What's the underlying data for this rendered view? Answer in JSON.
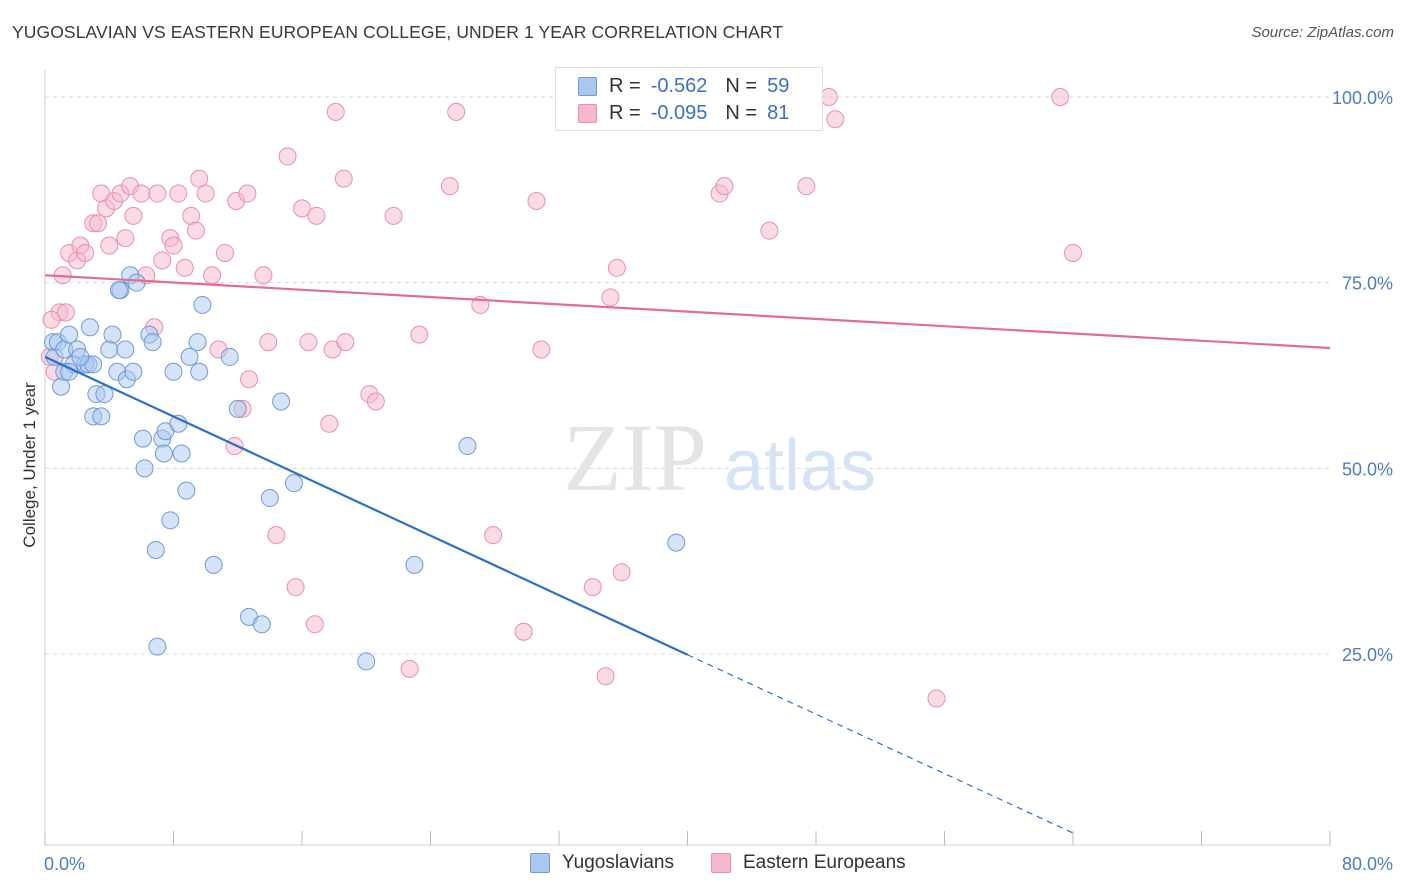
{
  "header": {
    "title": "YUGOSLAVIAN VS EASTERN EUROPEAN COLLEGE, UNDER 1 YEAR CORRELATION CHART",
    "source": "Source: ZipAtlas.com"
  },
  "watermark": {
    "zip": "ZIP",
    "atlas": "atlas"
  },
  "stats_legend": {
    "rows": [
      {
        "r_label": "R =",
        "r_value": "-0.562",
        "n_label": "N =",
        "n_value": "59"
      },
      {
        "r_label": "R =",
        "r_value": "-0.095",
        "n_label": "N =",
        "n_value": "81"
      }
    ]
  },
  "colors": {
    "blue_fill": "#a9c8f0",
    "blue_stroke": "#6f9ad8",
    "blue_line": "#2a6fd1",
    "pink_fill": "#f6b8cb",
    "pink_stroke": "#e98fab",
    "pink_line": "#e46b93",
    "tick_label": "#4a7cc9",
    "grid": "#d9d9d9"
  },
  "chart_data": {
    "type": "scatter",
    "title": "YUGOSLAVIAN VS EASTERN EUROPEAN COLLEGE, UNDER 1 YEAR CORRELATION CHART",
    "xlabel": "",
    "ylabel": "College, Under 1 year",
    "xlim": [
      0,
      80
    ],
    "ylim": [
      0,
      105
    ],
    "x_tick_labels": [
      "0.0%",
      "80.0%"
    ],
    "y_ticks": [
      25,
      50,
      75,
      100
    ],
    "y_tick_labels": [
      "25.0%",
      "50.0%",
      "75.0%",
      "100.0%"
    ],
    "grid": true,
    "legend_placement": "bottom-center",
    "series": [
      {
        "name": "Yugoslavians",
        "color": "#a9c8f0",
        "trend": {
          "x0": 0,
          "y0": 65,
          "x1": 40,
          "y1": 24.9,
          "dashed_to_x": 64.1,
          "dashed_to_y": 0.8
        },
        "points": [
          [
            0.5,
            67
          ],
          [
            0.6,
            65
          ],
          [
            0.8,
            67
          ],
          [
            1.0,
            61
          ],
          [
            1.2,
            63
          ],
          [
            1.2,
            66
          ],
          [
            1.5,
            68
          ],
          [
            1.8,
            64
          ],
          [
            2.0,
            66
          ],
          [
            2.5,
            64
          ],
          [
            2.7,
            64
          ],
          [
            2.8,
            69
          ],
          [
            3.0,
            57
          ],
          [
            3.2,
            60
          ],
          [
            3.5,
            57
          ],
          [
            3.7,
            60
          ],
          [
            4.0,
            66
          ],
          [
            4.2,
            68
          ],
          [
            4.5,
            63
          ],
          [
            4.7,
            74
          ],
          [
            5.0,
            66
          ],
          [
            5.1,
            62
          ],
          [
            5.3,
            76
          ],
          [
            5.5,
            63
          ],
          [
            5.7,
            75
          ],
          [
            6.1,
            54
          ],
          [
            6.2,
            50
          ],
          [
            6.5,
            68
          ],
          [
            6.7,
            67
          ],
          [
            6.9,
            39
          ],
          [
            7.0,
            26
          ],
          [
            7.3,
            54
          ],
          [
            7.4,
            52
          ],
          [
            7.5,
            55
          ],
          [
            7.8,
            43
          ],
          [
            8.0,
            63
          ],
          [
            8.3,
            56
          ],
          [
            8.5,
            52
          ],
          [
            8.8,
            47
          ],
          [
            9.0,
            65
          ],
          [
            9.5,
            67
          ],
          [
            9.6,
            63
          ],
          [
            9.8,
            72
          ],
          [
            10.5,
            37
          ],
          [
            11.5,
            65
          ],
          [
            12.0,
            58
          ],
          [
            12.7,
            30
          ],
          [
            13.5,
            29
          ],
          [
            14.0,
            46
          ],
          [
            14.7,
            59
          ],
          [
            15.5,
            48
          ],
          [
            20.0,
            24
          ],
          [
            23.0,
            37
          ],
          [
            26.3,
            53
          ],
          [
            39.3,
            40
          ],
          [
            3.0,
            64
          ],
          [
            1.5,
            63
          ],
          [
            4.6,
            74
          ],
          [
            2.2,
            65
          ]
        ]
      },
      {
        "name": "Eastern Europeans",
        "color": "#f6b8cb",
        "trend": {
          "x0": 0,
          "y0": 76,
          "x1": 80,
          "y1": 66.2
        },
        "points": [
          [
            0.3,
            65
          ],
          [
            0.6,
            63
          ],
          [
            0.9,
            71
          ],
          [
            1.1,
            76
          ],
          [
            1.5,
            79
          ],
          [
            2.0,
            78
          ],
          [
            2.2,
            80
          ],
          [
            2.5,
            79
          ],
          [
            3.0,
            83
          ],
          [
            3.3,
            83
          ],
          [
            3.5,
            87
          ],
          [
            3.8,
            85
          ],
          [
            4.0,
            80
          ],
          [
            4.3,
            86
          ],
          [
            4.7,
            87
          ],
          [
            5.0,
            81
          ],
          [
            5.3,
            88
          ],
          [
            5.5,
            84
          ],
          [
            6.0,
            87
          ],
          [
            6.3,
            76
          ],
          [
            6.8,
            69
          ],
          [
            7.0,
            87
          ],
          [
            7.3,
            78
          ],
          [
            7.8,
            81
          ],
          [
            8.0,
            80
          ],
          [
            8.3,
            87
          ],
          [
            8.7,
            77
          ],
          [
            9.1,
            84
          ],
          [
            9.4,
            82
          ],
          [
            9.6,
            89
          ],
          [
            10.0,
            87
          ],
          [
            10.4,
            76
          ],
          [
            10.8,
            66
          ],
          [
            11.2,
            79
          ],
          [
            11.8,
            53
          ],
          [
            11.9,
            86
          ],
          [
            12.3,
            58
          ],
          [
            12.6,
            87
          ],
          [
            12.7,
            62
          ],
          [
            13.6,
            76
          ],
          [
            13.9,
            67
          ],
          [
            14.4,
            41
          ],
          [
            15.1,
            92
          ],
          [
            15.6,
            34
          ],
          [
            16.0,
            85
          ],
          [
            16.4,
            67
          ],
          [
            16.8,
            29
          ],
          [
            16.9,
            84
          ],
          [
            17.7,
            56
          ],
          [
            17.9,
            66
          ],
          [
            18.1,
            98
          ],
          [
            18.6,
            89
          ],
          [
            18.7,
            67
          ],
          [
            20.2,
            60
          ],
          [
            20.6,
            59
          ],
          [
            21.7,
            84
          ],
          [
            22.7,
            23
          ],
          [
            23.3,
            68
          ],
          [
            25.2,
            88
          ],
          [
            25.6,
            98
          ],
          [
            27.1,
            72
          ],
          [
            27.9,
            41
          ],
          [
            29.8,
            28
          ],
          [
            30.6,
            86
          ],
          [
            30.9,
            66
          ],
          [
            34.1,
            34
          ],
          [
            34.9,
            22
          ],
          [
            35.2,
            73
          ],
          [
            35.6,
            77
          ],
          [
            35.9,
            36
          ],
          [
            42.0,
            87
          ],
          [
            42.3,
            88
          ],
          [
            45.1,
            82
          ],
          [
            47.4,
            88
          ],
          [
            48.8,
            100
          ],
          [
            49.2,
            97
          ],
          [
            55.5,
            19
          ],
          [
            63.2,
            100
          ],
          [
            64.0,
            79
          ],
          [
            0.4,
            70
          ],
          [
            1.3,
            71
          ]
        ]
      }
    ]
  },
  "bottom_legend": {
    "items": [
      {
        "label": "Yugoslavians"
      },
      {
        "label": "Eastern Europeans"
      }
    ]
  }
}
